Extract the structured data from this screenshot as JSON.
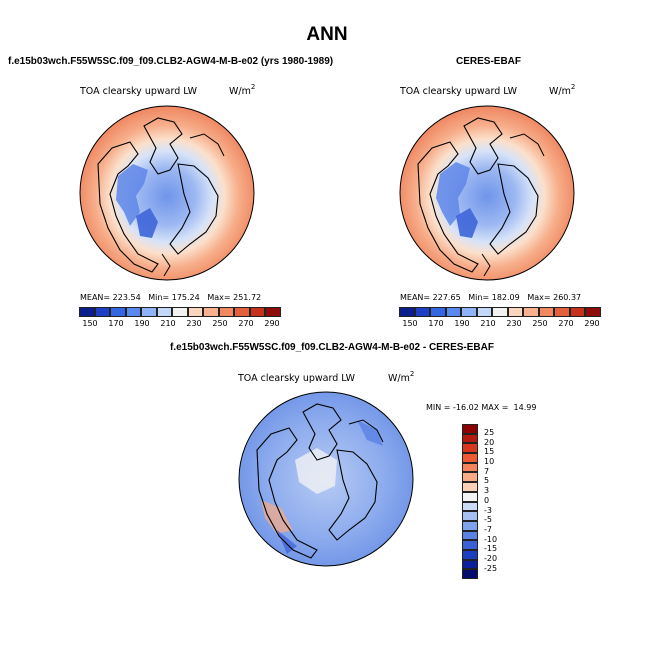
{
  "title": "ANN",
  "panels": [
    {
      "id": "model",
      "header": "f.e15b03wch.F55W5SC.f09_f09.CLB2-AGW4-M-B-e02 (yrs 1980-1989)",
      "field": "TOA clearsky upward LW",
      "units_base": "W/m",
      "units_exp": "2",
      "stats_text": "MEAN= 223.54   Min= 175.24   Max= 251.72"
    },
    {
      "id": "obs",
      "header": "CERES-EBAF",
      "field": "TOA clearsky upward LW",
      "units_base": "W/m",
      "units_exp": "2",
      "stats_text": "MEAN= 227.65   Min= 182.09   Max= 260.37"
    },
    {
      "id": "diff",
      "header": "f.e15b03wch.F55W5SC.f09_f09.CLB2-AGW4-M-B-e02 - CERES-EBAF",
      "field": "TOA clearsky upward LW",
      "units_base": "W/m",
      "units_exp": "2",
      "stats_text": "MIN = -16.02 MAX =  14.99"
    }
  ],
  "abs_colorbar": {
    "colors": [
      "#0b1f8a",
      "#1f3fc4",
      "#3466e2",
      "#5a8af0",
      "#8fb1f5",
      "#c4d7f8",
      "#f2f2f2",
      "#fbd5bd",
      "#f9b18f",
      "#f28963",
      "#e35f3e",
      "#c7321f",
      "#8e0c0c"
    ],
    "tick_labels": [
      "150",
      "170",
      "190",
      "210",
      "230",
      "250",
      "270",
      "290"
    ]
  },
  "diff_colorbar": {
    "colors": [
      "#8b0000",
      "#b51a0e",
      "#d8371f",
      "#ef5a33",
      "#f6845a",
      "#f9ab85",
      "#fcd0b6",
      "#f4f4f4",
      "#ccdcf6",
      "#a7c0f2",
      "#7ea2ec",
      "#5a82e4",
      "#3a60d6",
      "#1d3ebe",
      "#0d1f9c",
      "#050a6e"
    ],
    "tick_labels": [
      "25",
      "20",
      "15",
      "10",
      "7",
      "5",
      "3",
      "0",
      "-3",
      "-5",
      "-7",
      "-10",
      "-15",
      "-20",
      "-25"
    ]
  },
  "chart_data": [
    {
      "type": "heatmap",
      "title": "TOA clearsky upward LW",
      "subtitle": "f.e15b03wch.F55W5SC.f09_f09.CLB2-AGW4-M-B-e02 (yrs 1980-1989)",
      "units": "W/m2",
      "projection": "north polar stereographic",
      "mean": 223.54,
      "min": 175.24,
      "max": 251.72,
      "levels": [
        150,
        170,
        190,
        210,
        230,
        250,
        270,
        290
      ]
    },
    {
      "type": "heatmap",
      "title": "TOA clearsky upward LW",
      "subtitle": "CERES-EBAF",
      "units": "W/m2",
      "projection": "north polar stereographic",
      "mean": 227.65,
      "min": 182.09,
      "max": 260.37,
      "levels": [
        150,
        170,
        190,
        210,
        230,
        250,
        270,
        290
      ]
    },
    {
      "type": "heatmap",
      "title": "TOA clearsky upward LW",
      "subtitle": "f.e15b03wch.F55W5SC.f09_f09.CLB2-AGW4-M-B-e02 - CERES-EBAF",
      "units": "W/m2",
      "projection": "north polar stereographic",
      "min": -16.02,
      "max": 14.99,
      "levels": [
        25,
        20,
        15,
        10,
        7,
        5,
        3,
        0,
        -3,
        -5,
        -7,
        -10,
        -15,
        -20,
        -25
      ]
    }
  ]
}
